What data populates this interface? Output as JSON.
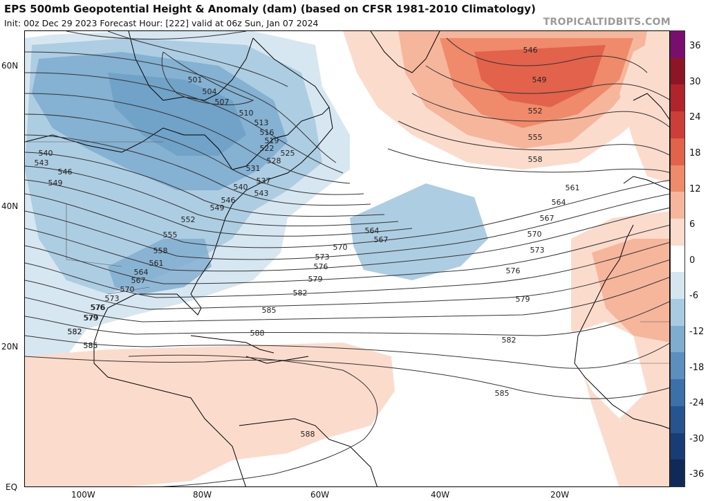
{
  "header": {
    "title": "EPS 500mb Geopotential Height & Anomaly (dam) (based on CFSR 1981-2010 Climatology)",
    "subtitle": "Init: 00z Dec 29 2023   Forecast Hour: [222]   valid at 06z Sun, Jan 07 2024",
    "source": "TROPICALTIDBITS.COM"
  },
  "map": {
    "lat_labels": [
      "60N",
      "40N",
      "20N",
      "EQ"
    ],
    "lon_labels": [
      "100W",
      "80W",
      "60W",
      "40W",
      "20W"
    ],
    "contour_labels_west": [
      "501",
      "504",
      "507",
      "510",
      "513",
      "516",
      "519",
      "522",
      "525",
      "528",
      "531",
      "537",
      "540",
      "543",
      "546",
      "549",
      "552",
      "555",
      "558",
      "561",
      "564",
      "567",
      "570",
      "573",
      "576",
      "579",
      "582",
      "585",
      "588"
    ],
    "contour_labels_coast": [
      "540",
      "543",
      "546",
      "549",
      "576",
      "579",
      "582",
      "585"
    ],
    "contour_labels_atlantic": [
      "564",
      "567",
      "570",
      "573",
      "576",
      "579",
      "582",
      "585",
      "588"
    ],
    "contour_labels_east": [
      "546",
      "549",
      "552",
      "555",
      "558",
      "561",
      "564",
      "567",
      "570",
      "573",
      "576",
      "579",
      "582",
      "585"
    ]
  },
  "colorbar": {
    "labels": [
      "36",
      "30",
      "24",
      "18",
      "12",
      "6",
      "0",
      "-6",
      "-12",
      "-18",
      "-24",
      "-30",
      "-36"
    ],
    "colors": [
      "#7a0e6e",
      "#8e1526",
      "#b1242c",
      "#cd3e38",
      "#e2624c",
      "#ef8a6b",
      "#f6b69c",
      "#fbdccc",
      "#ffffff",
      "#d5e6f1",
      "#a9cbe1",
      "#7fadd0",
      "#5a8fbe",
      "#3c70a8",
      "#265490",
      "#183d76",
      "#0f2a58"
    ]
  }
}
